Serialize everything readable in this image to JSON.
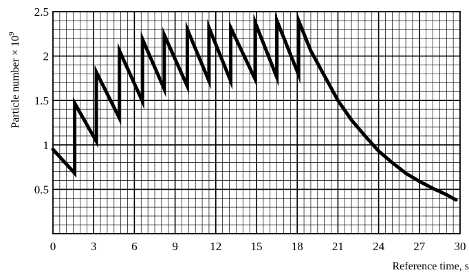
{
  "chart_data": {
    "type": "line",
    "title": "",
    "xlabel": "Reference time, s",
    "ylabel": "Particle number × 10",
    "ylabel_exponent": "9",
    "xlim": [
      0,
      30
    ],
    "ylim": [
      0,
      2.5
    ],
    "x_ticks": [
      0,
      3,
      6,
      9,
      12,
      15,
      18,
      21,
      24,
      27,
      30
    ],
    "x_tick_labels": [
      "0",
      "3",
      "6",
      "9",
      "12",
      "15",
      "18",
      "21",
      "24",
      "27",
      "30"
    ],
    "y_ticks": [
      0.5,
      1,
      1.5,
      2,
      2.5
    ],
    "y_tick_labels": [
      "0.5",
      "1",
      "1.5",
      "2",
      "2.5"
    ],
    "grid": true,
    "minor_grid": {
      "x_step": 0.5,
      "y_step": 0.1
    },
    "series": [
      {
        "x": [
          0,
          1.6,
          1.6,
          3.2,
          3.2,
          4.9,
          4.9,
          6.6,
          6.6,
          8.2,
          8.2,
          9.9,
          9.9,
          11.5,
          11.5,
          13.1,
          13.1,
          14.9,
          14.9,
          16.5,
          16.5,
          18.1,
          18.1,
          19,
          20,
          21,
          22,
          23,
          24,
          25,
          26,
          27,
          28,
          29,
          29.7
        ],
        "y": [
          0.95,
          0.68,
          1.47,
          1.04,
          1.82,
          1.3,
          2.06,
          1.49,
          2.19,
          1.63,
          2.24,
          1.66,
          2.3,
          1.72,
          2.32,
          1.72,
          2.32,
          1.74,
          2.38,
          1.76,
          2.4,
          1.79,
          2.4,
          2.06,
          1.78,
          1.5,
          1.28,
          1.1,
          0.93,
          0.8,
          0.68,
          0.59,
          0.51,
          0.44,
          0.38
        ]
      }
    ]
  }
}
